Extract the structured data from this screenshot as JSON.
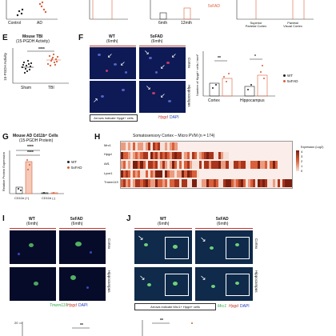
{
  "colors": {
    "wt": "#222222",
    "fad": "#d9603b",
    "micro_bg": "#0b1240",
    "accent_red": "#c0392b"
  },
  "top": {
    "xlabels_a": [
      "Control",
      "AD"
    ],
    "legend_5xfad": "5xFAD",
    "xlabels_c": [
      "6mth",
      "12mth"
    ],
    "xlabels_d": [
      "Superior\nParietal Cortex",
      "Parietal\nVisual Cortex"
    ]
  },
  "panelE": {
    "label": "E",
    "title1": "Mouse TBI",
    "title2": "(15-PGDH Activity)",
    "ylabel": "15-PGDH Activity",
    "xlabels": [
      "Sham",
      "TBI"
    ],
    "sig": "****"
  },
  "panelF": {
    "label": "F",
    "wt": "WT",
    "fad": "5xFAD",
    "age": "(6mth)",
    "row_cortex": "Cortex",
    "row_hippo": "Hippocampus",
    "arrows_caption": "Arrows indicate Hpgd+ cells",
    "stain_hpgd": "Hpgd",
    "stain_dapi": "DAPI",
    "chart_ylabel": "Number of Hpgd+ cells / mm²",
    "chart_sig1": "**",
    "chart_sig2": "*",
    "legend_wt": "WT",
    "legend_fad": "5xFAD"
  },
  "panelG": {
    "label": "G",
    "title1": "Mouse AD Cd11b⁺ Cells",
    "title2": "(15-PGDH Protein)",
    "ylabel": "Relative Protein Expression",
    "xlabels": [
      "CD11b (+)",
      "CD11b (-)"
    ],
    "sig1": "****",
    "sig2": "****",
    "legend_wt": "WT",
    "legend_fad": "5xFAD"
  },
  "panelH": {
    "label": "H",
    "title": "Somatosensory Cortex – Micro PVM (n = 174)",
    "genes": [
      "Mrc1",
      "Hpgd",
      "Aif1",
      "Lyve1",
      "Tmem119"
    ],
    "legend_title": "Expression (Log2)",
    "legend_ticks": [
      "4",
      "3",
      "2",
      "1",
      "0"
    ]
  },
  "panelI": {
    "label": "I",
    "wt": "WT",
    "fad": "5xFAD",
    "age": "(6mth)",
    "row_cortex": "Cortex",
    "row_hippo": "Hippocampus",
    "stain_tmem": "Tmem119",
    "stain_hpgd": "Hpgd",
    "stain_dapi": "DAPI"
  },
  "panelJ": {
    "label": "J",
    "wt": "WT",
    "fad": "5xFAD",
    "age": "(6mth)",
    "row_cortex": "Cortex",
    "row_hippo": "Hippocampus",
    "arrows_caption": "Arrows indicate Mrc1+ Hpgd+ cells",
    "stain_mrc1": "Mrc1",
    "stain_hpgd": "Hpgd",
    "stain_dapi": "DAPI"
  },
  "bottom": {
    "sig_a": "**",
    "sig_b": "**",
    "tick": "20"
  }
}
